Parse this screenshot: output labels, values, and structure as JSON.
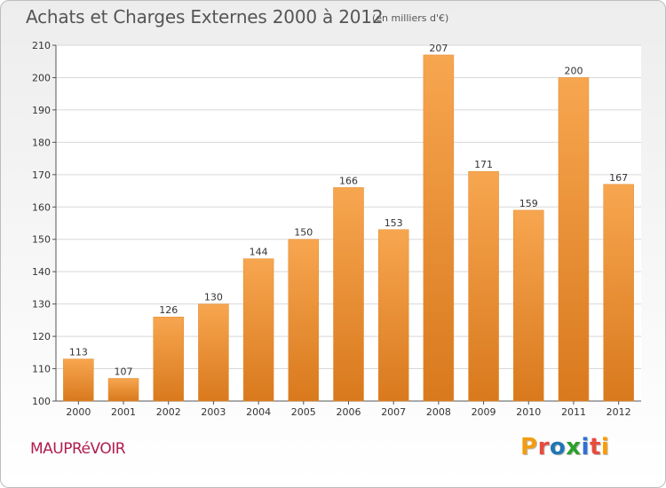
{
  "header": {
    "title": "Achats et Charges Externes 2000 à 2012",
    "unit": "(en milliers d'€)"
  },
  "footer": {
    "commune": "MAUPRéVOIR"
  },
  "brand": {
    "text": "Proxiti",
    "colors": [
      "#f39c12",
      "#e74c3c",
      "#1f77b4",
      "#2ca02c",
      "#2f6fd8",
      "#e74c3c",
      "#ff9a00"
    ]
  },
  "chart_data": {
    "type": "bar",
    "categories": [
      "2000",
      "2001",
      "2002",
      "2003",
      "2004",
      "2005",
      "2006",
      "2007",
      "2008",
      "2009",
      "2010",
      "2011",
      "2012"
    ],
    "values": [
      113,
      107,
      126,
      130,
      144,
      150,
      166,
      153,
      207,
      171,
      159,
      200,
      167
    ],
    "ylim": [
      100,
      210
    ],
    "yticks": [
      100,
      110,
      120,
      130,
      140,
      150,
      160,
      170,
      180,
      190,
      200,
      210
    ],
    "grid": true,
    "legend": "none",
    "colors": {
      "bar_top": "#f7a650",
      "bar_bottom": "#d9791d",
      "axis": "#555555",
      "grid": "#d8d8d8"
    }
  }
}
